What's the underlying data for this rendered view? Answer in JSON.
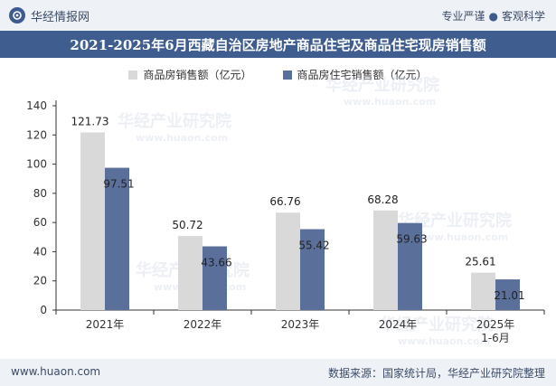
{
  "header": {
    "brand": "华经情报网",
    "slogan_left": "专业严谨",
    "slogan_right": "客观科学"
  },
  "title": "2021-2025年6月西藏自治区房地产商品住宅及商品住宅现房销售额",
  "watermark": {
    "cn": "华经产业研究院",
    "url": "www.huaon.com"
  },
  "footer": {
    "url": "www.huaon.com",
    "source": "数据来源：国家统计局，华经产业研究院整理"
  },
  "colors": {
    "series1": "#d9d9d9",
    "series2": "#5b6f9b",
    "title_bg": "#3f5d8f"
  },
  "chart_data": {
    "type": "bar",
    "title": "2021-2025年6月西藏自治区房地产商品住宅及商品住宅现房销售额",
    "categories": [
      "2021年",
      "2022年",
      "2023年",
      "2024年",
      "2025年\n1-6月"
    ],
    "category_lines": [
      [
        "2021年"
      ],
      [
        "2022年"
      ],
      [
        "2023年"
      ],
      [
        "2024年"
      ],
      [
        "2025年",
        "1-6月"
      ]
    ],
    "series": [
      {
        "name": "商品房销售额（亿元）",
        "values": [
          121.73,
          50.72,
          66.76,
          68.28,
          25.61
        ]
      },
      {
        "name": "商品房住宅销售额（亿元）",
        "values": [
          97.51,
          43.66,
          55.42,
          59.63,
          21.01
        ]
      }
    ],
    "ylim": [
      0,
      140
    ],
    "yticks": [
      0,
      20,
      40,
      60,
      80,
      100,
      120,
      140
    ],
    "xlabel": "",
    "ylabel": "",
    "legend": "top-center"
  }
}
